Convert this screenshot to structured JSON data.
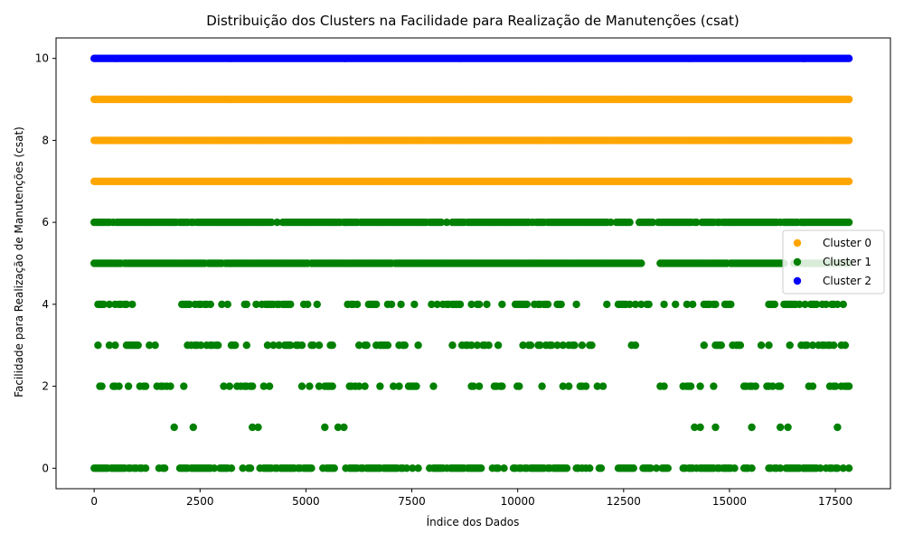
{
  "chart_data": {
    "type": "scatter",
    "title": "Distribuição dos Clusters na Facilidade para Realização de Manutenções (csat)",
    "xlabel": "Índice dos Dados",
    "ylabel": "Facilidade para Realização de Manutenções (csat)",
    "xlim": [
      -900,
      18800
    ],
    "ylim": [
      -0.5,
      10.5
    ],
    "x_ticks": [
      0,
      2500,
      5000,
      7500,
      10000,
      12500,
      15000,
      17500
    ],
    "y_ticks": [
      0,
      2,
      4,
      6,
      8,
      10
    ],
    "x_max_index": 17850,
    "legend_position": "center-right",
    "grid": false,
    "series": [
      {
        "name": "Cluster 0",
        "color": "#ffa500",
        "levels": [
          7,
          8,
          9
        ],
        "gaps": []
      },
      {
        "name": "Cluster 1",
        "color": "#008000",
        "levels": [
          0,
          1,
          2,
          3,
          4,
          5,
          6
        ],
        "gaps": [
          {
            "level": 0,
            "x_ranges": [
              [
                12000,
                12350
              ],
              [
                12800,
                12950
              ]
            ]
          },
          {
            "level": 1,
            "x_ranges": [
              [
                850,
                1650
              ],
              [
                2900,
                3200
              ],
              [
                4150,
                4900
              ],
              [
                6100,
                7400
              ],
              [
                8100,
                10400
              ],
              [
                10600,
                10900
              ],
              [
                11400,
                11900
              ],
              [
                12100,
                12300
              ],
              [
                12500,
                13400
              ]
            ]
          },
          {
            "level": 2,
            "x_ranges": [
              [
                12800,
                13300
              ],
              [
                13500,
                13800
              ]
            ]
          },
          {
            "level": 3,
            "x_ranges": [
              [
                12000,
                12300
              ],
              [
                12800,
                14100
              ],
              [
                15300,
                15700
              ]
            ]
          },
          {
            "level": 4,
            "x_ranges": [
              [
                11700,
                12100
              ],
              [
                13100,
                13300
              ],
              [
                15200,
                15400
              ]
            ]
          },
          {
            "level": 5,
            "x_ranges": [
              [
                13000,
                13350
              ],
              [
                16300,
                16500
              ]
            ]
          },
          {
            "level": 6,
            "x_ranges": [
              [
                12700,
                12800
              ],
              [
                13200,
                13300
              ]
            ]
          }
        ]
      },
      {
        "name": "Cluster 2",
        "color": "#0000ff",
        "levels": [
          10
        ],
        "gaps": []
      }
    ],
    "point_density": {
      "0": 0.55,
      "1": 0.12,
      "2": 0.3,
      "3": 0.32,
      "4": 0.35,
      "5": 0.9,
      "6": 0.75,
      "7": 1,
      "8": 1,
      "9": 1,
      "10": 1
    }
  }
}
